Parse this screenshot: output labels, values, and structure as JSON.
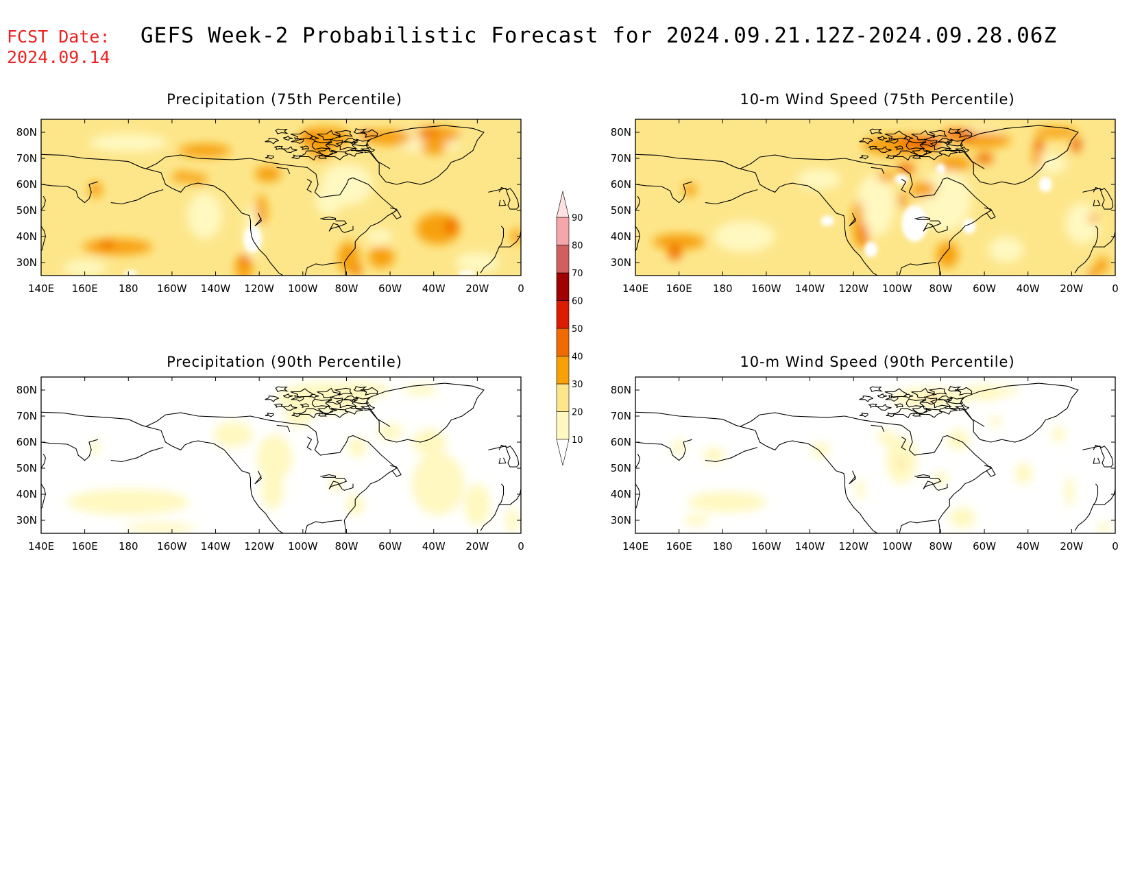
{
  "header": {
    "fcst_label": "FCST Date:",
    "fcst_date": "2024.09.14",
    "title": "GEFS Week-2 Probabilistic Forecast for 2024.09.21.12Z-2024.09.28.06Z"
  },
  "colorbar": {
    "levels": [
      "10",
      "20",
      "30",
      "40",
      "50",
      "60",
      "70",
      "80",
      "90"
    ],
    "colors": [
      "#fff8c0",
      "#fde68a",
      "#f7a008",
      "#f06a00",
      "#dc1c00",
      "#a00000",
      "#d06060",
      "#f4a6aa",
      "#fde2e2"
    ]
  },
  "panel_axes": {
    "lon_labels": [
      "140E",
      "160E",
      "180",
      "160W",
      "140W",
      "120W",
      "100W",
      "80W",
      "60W",
      "40W",
      "20W",
      "0"
    ],
    "lat_labels": [
      "80N",
      "70N",
      "60N",
      "50N",
      "40N",
      "30N"
    ]
  },
  "panels": [
    {
      "title": "Precipitation (75th Percentile)"
    },
    {
      "title": "10-m Wind Speed (75th Percentile)"
    },
    {
      "title": "Precipitation (90th Percentile)"
    },
    {
      "title": "10-m Wind Speed (90th Percentile)"
    }
  ]
}
